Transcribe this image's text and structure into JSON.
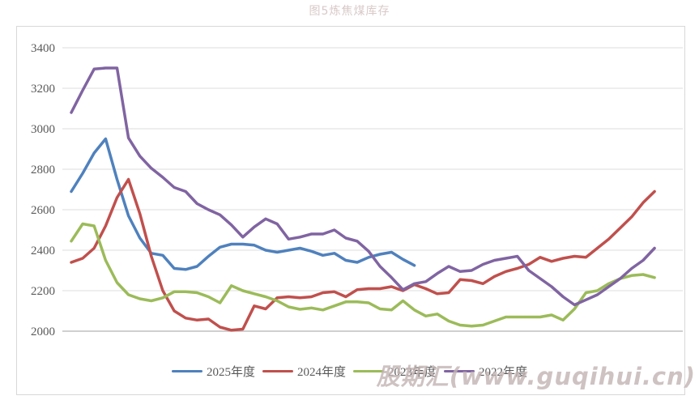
{
  "page": {
    "title": "图5炼焦煤库存",
    "watermark": "股期汇(www.guqihui.cn)"
  },
  "chart_data": {
    "type": "line",
    "title": "图5炼焦煤库存",
    "x": "weeks 1-52 of year (x axis has no visible tick labels)",
    "ylim": [
      2000,
      3400
    ],
    "y_ticks": [
      3400,
      3200,
      3000,
      2800,
      2600,
      2400,
      2200,
      2000
    ],
    "grid": "horizontal",
    "legend_position": "bottom",
    "axis_color": "#bfbfbf",
    "gridline_color": "#dcdcdc",
    "tick_label_color": "#595959",
    "series": [
      {
        "name": "2025年度",
        "color": "#4F81BD",
        "values": [
          2690,
          2780,
          2880,
          2950,
          2750,
          2570,
          2460,
          2385,
          2375,
          2310,
          2305,
          2320,
          2370,
          2415,
          2430,
          2430,
          2425,
          2400,
          2390,
          2400,
          2410,
          2395,
          2375,
          2385,
          2350,
          2340,
          2365,
          2380,
          2390,
          2355,
          2325
        ]
      },
      {
        "name": "2024年度",
        "color": "#C0504D",
        "values": [
          2340,
          2360,
          2410,
          2520,
          2660,
          2750,
          2580,
          2370,
          2200,
          2100,
          2065,
          2055,
          2060,
          2020,
          2005,
          2010,
          2125,
          2110,
          2165,
          2170,
          2165,
          2170,
          2190,
          2195,
          2170,
          2205,
          2210,
          2210,
          2220,
          2200,
          2230,
          2210,
          2185,
          2190,
          2255,
          2250,
          2235,
          2270,
          2295,
          2310,
          2330,
          2365,
          2345,
          2360,
          2370,
          2365,
          2410,
          2455,
          2510,
          2565,
          2635,
          2690
        ]
      },
      {
        "name": "2023年度",
        "color": "#9BBB59",
        "values": [
          2445,
          2530,
          2520,
          2350,
          2240,
          2180,
          2160,
          2150,
          2165,
          2195,
          2195,
          2190,
          2170,
          2140,
          2225,
          2200,
          2185,
          2170,
          2150,
          2120,
          2108,
          2115,
          2105,
          2125,
          2145,
          2145,
          2140,
          2110,
          2105,
          2150,
          2105,
          2075,
          2085,
          2050,
          2030,
          2025,
          2030,
          2050,
          2070,
          2070,
          2070,
          2070,
          2080,
          2055,
          2110,
          2190,
          2200,
          2235,
          2260,
          2275,
          2280,
          2265
        ]
      },
      {
        "name": "2022年度",
        "color": "#8064A2",
        "values": [
          3080,
          3190,
          3295,
          3300,
          3300,
          2955,
          2865,
          2805,
          2760,
          2710,
          2690,
          2630,
          2600,
          2575,
          2525,
          2465,
          2515,
          2555,
          2530,
          2455,
          2465,
          2480,
          2480,
          2500,
          2460,
          2445,
          2395,
          2320,
          2265,
          2205,
          2235,
          2245,
          2285,
          2320,
          2295,
          2300,
          2330,
          2350,
          2360,
          2370,
          2300,
          2260,
          2220,
          2170,
          2130,
          2155,
          2180,
          2220,
          2260,
          2310,
          2350,
          2410
        ]
      }
    ]
  }
}
